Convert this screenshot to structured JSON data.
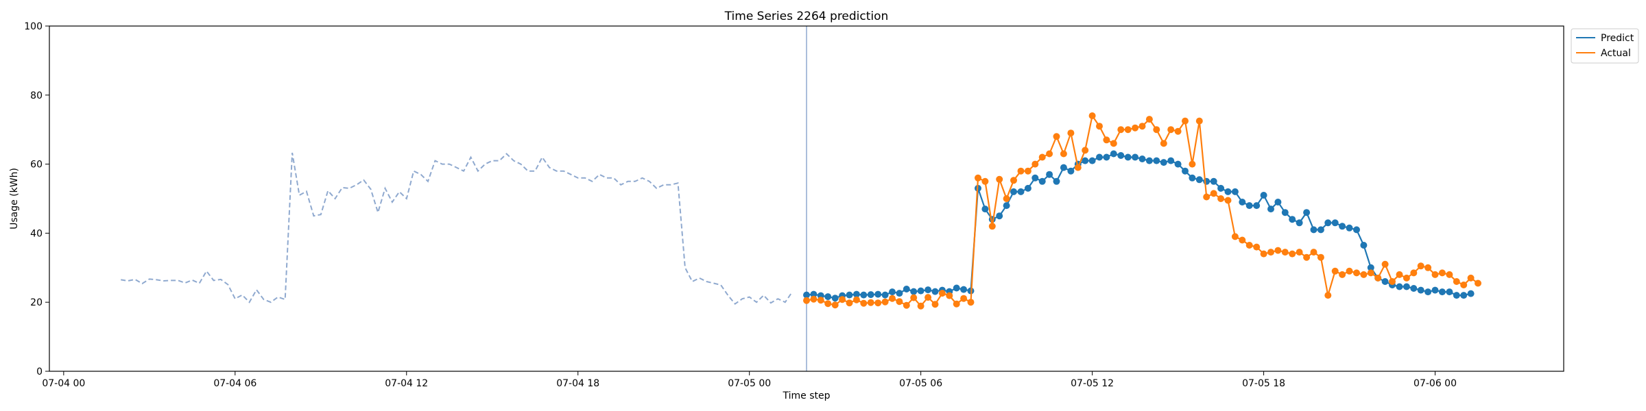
{
  "chart_data": {
    "type": "line",
    "title": "Time Series 2264 prediction",
    "xlabel": "Time step",
    "ylabel": "Usage (kWh)",
    "ylim": [
      0,
      100
    ],
    "yticks": [
      0,
      20,
      40,
      60,
      80,
      100
    ],
    "xlim_hours": [
      -0.5,
      52.5
    ],
    "xticks": [
      {
        "label": "07-04 00",
        "hour": 0
      },
      {
        "label": "07-04 06",
        "hour": 6
      },
      {
        "label": "07-04 12",
        "hour": 12
      },
      {
        "label": "07-04 18",
        "hour": 18
      },
      {
        "label": "07-05 00",
        "hour": 24
      },
      {
        "label": "07-05 06",
        "hour": 30
      },
      {
        "label": "07-05 12",
        "hour": 36
      },
      {
        "label": "07-05 18",
        "hour": 42
      },
      {
        "label": "07-06 00",
        "hour": 48
      }
    ],
    "forecast_start_hour": 26,
    "colors": {
      "predict": "#1f77b4",
      "actual": "#ff7f0e",
      "history": "#8fa9cf",
      "divider": "#8fa9cf"
    },
    "legend": {
      "location": "top-right-outside",
      "entries": [
        "Predict",
        "Actual"
      ]
    },
    "grid": false,
    "series": [
      {
        "name": "History",
        "style": "dashed",
        "x_start": 2,
        "x_step": 0.25,
        "values": [
          26.5,
          26.2,
          26.6,
          25.4,
          26.7,
          26.5,
          26.2,
          26.3,
          26.3,
          25.6,
          26.4,
          25.5,
          29.0,
          26.3,
          26.6,
          25.1,
          21.0,
          22.1,
          20.0,
          23.6,
          20.8,
          20.0,
          21.5,
          20.8,
          63.3,
          51.0,
          52.1,
          45.0,
          45.4,
          52.3,
          50.0,
          53.2,
          53.0,
          54.0,
          55.4,
          52.7,
          46.0,
          53.0,
          49.0,
          52.0,
          50.0,
          58.0,
          57.0,
          55.0,
          61.0,
          60.0,
          60.0,
          59.0,
          58.0,
          62.0,
          58.0,
          60.0,
          61.0,
          61.0,
          63.0,
          61.0,
          60.0,
          58.0,
          58.0,
          62.0,
          59.0,
          58.0,
          58.0,
          57.0,
          56.0,
          56.0,
          55.0,
          57.0,
          56.0,
          56.0,
          54.0,
          55.0,
          55.0,
          56.0,
          55.0,
          53.0,
          54.0,
          54.0,
          54.5,
          30.0,
          26.0,
          27.0,
          26.0,
          25.5,
          25.0,
          22.0,
          19.5,
          21.0,
          21.5,
          20.0,
          22.0,
          19.8,
          21.0,
          20.0,
          23.0
        ]
      },
      {
        "name": "Predict",
        "style": "markers",
        "x_start": 26,
        "x_step": 0.25,
        "values": [
          22.1,
          22.3,
          21.9,
          21.6,
          21.2,
          21.9,
          22.1,
          22.3,
          22.1,
          22.2,
          22.3,
          22.1,
          23.0,
          22.6,
          23.8,
          23.1,
          23.3,
          23.6,
          23.1,
          23.5,
          23.1,
          24.1,
          23.7,
          23.3,
          53.0,
          47.0,
          44.0,
          45.0,
          48.0,
          52.0,
          52.0,
          53.0,
          56.0,
          55.0,
          57.0,
          55.0,
          59.0,
          58.0,
          60.0,
          61.0,
          61.0,
          62.0,
          62.0,
          63.0,
          62.5,
          62.0,
          62.0,
          61.5,
          61.0,
          61.0,
          60.5,
          61.0,
          60.0,
          58.0,
          56.0,
          55.5,
          55.0,
          55.0,
          53.0,
          52.0,
          52.0,
          49.0,
          48.0,
          48.0,
          51.0,
          47.0,
          49.0,
          46.0,
          44.0,
          43.0,
          46.0,
          41.0,
          41.0,
          43.0,
          43.0,
          42.0,
          41.5,
          41.0,
          36.5,
          30.0,
          27.0,
          26.0,
          25.0,
          24.5,
          24.5,
          24.0,
          23.5,
          23.0,
          23.5,
          23.0,
          23.0,
          22.0,
          22.0,
          22.5
        ]
      },
      {
        "name": "Actual",
        "style": "markers",
        "x_start": 26,
        "x_step": 0.25,
        "values": [
          20.5,
          20.9,
          20.6,
          19.6,
          19.2,
          20.8,
          19.8,
          20.7,
          19.7,
          19.9,
          19.8,
          20.1,
          21.1,
          20.2,
          19.1,
          21.3,
          18.9,
          21.4,
          19.4,
          22.6,
          21.9,
          19.5,
          21.1,
          20.0,
          56.0,
          55.0,
          42.0,
          55.6,
          50.0,
          55.3,
          58.0,
          58.0,
          60.0,
          62.0,
          63.0,
          68.0,
          63.0,
          69.0,
          59.0,
          64.0,
          74.0,
          71.0,
          67.0,
          66.0,
          70.0,
          70.0,
          70.5,
          71.0,
          73.0,
          70.0,
          66.0,
          70.0,
          69.5,
          72.5,
          60.0,
          72.5,
          50.5,
          51.5,
          50.0,
          49.5,
          39.0,
          38.0,
          36.5,
          36.0,
          34.0,
          34.5,
          35.0,
          34.5,
          34.0,
          34.5,
          33.0,
          34.5,
          33.0,
          22.0,
          29.0,
          28.0,
          29.0,
          28.5,
          28.0,
          28.5,
          27.0,
          31.0,
          26.0,
          28.0,
          27.0,
          28.5,
          30.5,
          30.0,
          28.0,
          28.5,
          28.0,
          26.0,
          25.0,
          27.0,
          25.5
        ]
      }
    ]
  }
}
